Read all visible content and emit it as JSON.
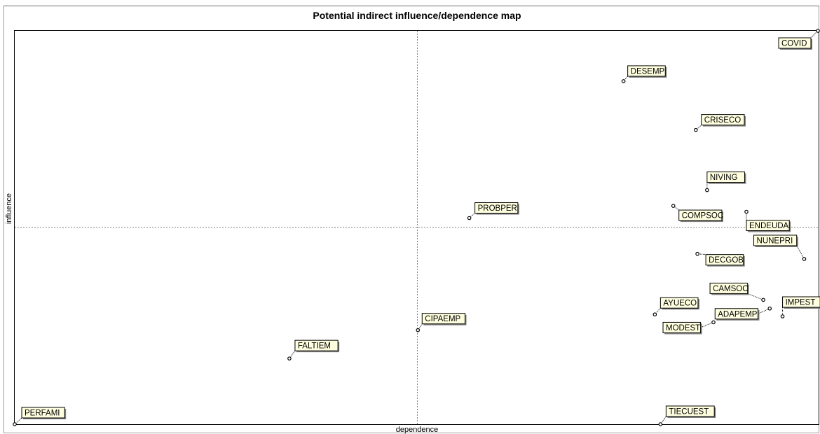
{
  "chart_data": {
    "type": "scatter",
    "title": "Potential indirect influence/dependence map",
    "xlabel": "dependence",
    "ylabel": "influence",
    "grid": false,
    "mean_lines": true,
    "colors": {
      "label_fill": "#ffffe0",
      "label_border": "#000000",
      "point": "#000000",
      "mean_line": "#808080"
    },
    "points": [
      {
        "label": "COVID",
        "x": 1.0,
        "y": 1.0
      },
      {
        "label": "DESEMP",
        "x": 0.758,
        "y": 0.872
      },
      {
        "label": "CRISECO",
        "x": 0.848,
        "y": 0.748
      },
      {
        "label": "NIVING",
        "x": 0.862,
        "y": 0.595
      },
      {
        "label": "PROBPER",
        "x": 0.566,
        "y": 0.524
      },
      {
        "label": "COMPSOC",
        "x": 0.82,
        "y": 0.555
      },
      {
        "label": "ENDEUDA",
        "x": 0.911,
        "y": 0.54
      },
      {
        "label": "NUNEPRI",
        "x": 0.983,
        "y": 0.42
      },
      {
        "label": "DECGOB",
        "x": 0.85,
        "y": 0.433
      },
      {
        "label": "CAMSOC",
        "x": 0.932,
        "y": 0.316
      },
      {
        "label": "IMPEST",
        "x": 0.956,
        "y": 0.274
      },
      {
        "label": "AYUECO",
        "x": 0.797,
        "y": 0.279
      },
      {
        "label": "ADAPEMP",
        "x": 0.94,
        "y": 0.294
      },
      {
        "label": "MODEST",
        "x": 0.87,
        "y": 0.259
      },
      {
        "label": "CIPAEMP",
        "x": 0.502,
        "y": 0.239
      },
      {
        "label": "FALTIEM",
        "x": 0.342,
        "y": 0.167
      },
      {
        "label": "PERFAMI",
        "x": 0.0,
        "y": 0.0
      },
      {
        "label": "TIECUEST",
        "x": 0.804,
        "y": 0.0
      }
    ]
  }
}
